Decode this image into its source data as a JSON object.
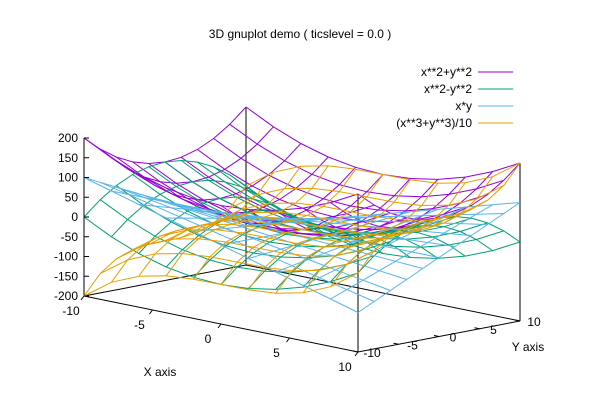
{
  "chart_data": {
    "type": "surface3d",
    "title": "3D gnuplot demo ( ticslevel = 0.0 )",
    "xlabel": "X axis",
    "ylabel": "Y axis",
    "xlim": [
      -10,
      10
    ],
    "ylim": [
      -10,
      10
    ],
    "zlim": [
      -200,
      200
    ],
    "xticks": [
      "-10",
      "-5",
      "0",
      "5",
      "10"
    ],
    "yticks": [
      "-10",
      "-5",
      "0",
      "5",
      "10"
    ],
    "zticks": [
      "-200",
      "-150",
      "-100",
      "-50",
      "0",
      "50",
      "100",
      "150",
      "200"
    ],
    "grid_samples": [
      -10,
      -8,
      -6,
      -4,
      -2,
      0,
      2,
      4,
      6,
      8,
      10
    ],
    "legend_position": "top-right",
    "series": [
      {
        "name": "x**2+y**2",
        "expr": "x*x+y*y",
        "color": "#9400d3"
      },
      {
        "name": "x**2-y**2",
        "expr": "x*x-y*y",
        "color": "#009e73"
      },
      {
        "name": "x*y",
        "expr": "x*y",
        "color": "#56b4e9"
      },
      {
        "name": "(x**3+y**3)/10",
        "expr": "(x*x*x+y*y*y)/10",
        "color": "#e69f00"
      }
    ]
  }
}
